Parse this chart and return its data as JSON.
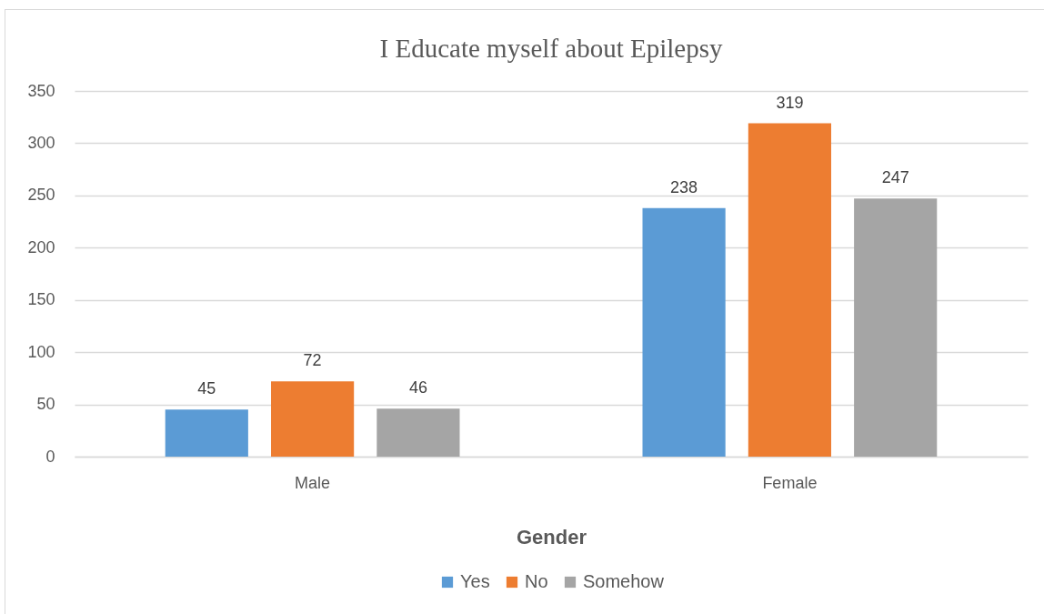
{
  "chart_data": {
    "type": "bar",
    "title": "I Educate myself about Epilepsy",
    "xlabel": "Gender",
    "categories": [
      "Male",
      "Female"
    ],
    "series": [
      {
        "name": "Yes",
        "color": "#5b9bd5",
        "values": [
          45,
          238
        ]
      },
      {
        "name": "No",
        "color": "#ed7d31",
        "values": [
          72,
          319
        ]
      },
      {
        "name": "Somehow",
        "color": "#a5a5a5",
        "values": [
          46,
          247
        ]
      }
    ],
    "ylim": [
      0,
      350
    ],
    "yticks": [
      0,
      50,
      100,
      150,
      200,
      250,
      300,
      350
    ],
    "grid": "y",
    "data_labels": true,
    "legend": "bottom"
  }
}
